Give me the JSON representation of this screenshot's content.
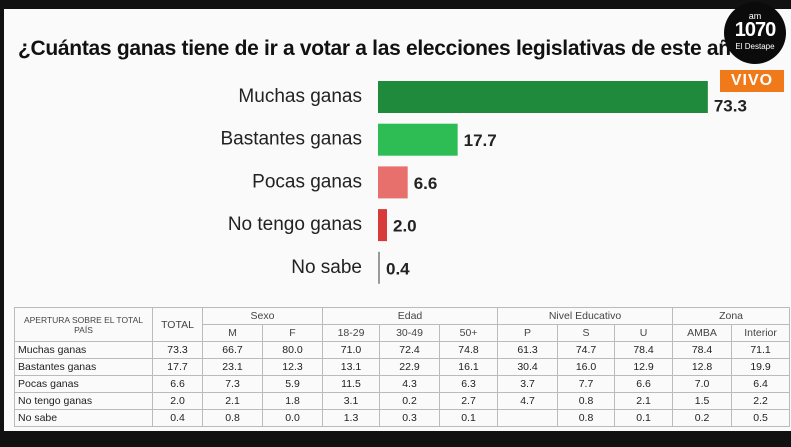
{
  "overlay": {
    "station": "am",
    "frequency": "1070",
    "name": "El Destape",
    "live": "VIVO"
  },
  "chart_data": {
    "type": "hbar",
    "title": "¿Cuántas ganas tiene de ir a votar a las elecciones legislativas de este año?",
    "categories": [
      "Muchas ganas",
      "Bastantes ganas",
      "Pocas ganas",
      "No tengo ganas",
      "No sabe"
    ],
    "values": [
      73.3,
      17.7,
      6.6,
      2.0,
      0.4
    ],
    "value_labels": [
      "73.3",
      "17.7",
      "6.6",
      "2.0",
      "0.4"
    ],
    "colors": [
      "#1f8a3b",
      "#2ebd55",
      "#e8706c",
      "#d8393a",
      "#9a9a9a"
    ]
  },
  "table": {
    "corner": "APERTURA SOBRE EL TOTAL PAÍS",
    "total": "TOTAL",
    "groups": [
      {
        "name": "Sexo",
        "columns": [
          "M",
          "F"
        ]
      },
      {
        "name": "Edad",
        "columns": [
          "18-29",
          "30-49",
          "50+"
        ]
      },
      {
        "name": "Nivel Educativo",
        "columns": [
          "P",
          "S",
          "U"
        ]
      },
      {
        "name": "Zona",
        "columns": [
          "AMBA",
          "Interior"
        ]
      }
    ],
    "rows": [
      {
        "label": "Muchas ganas",
        "values": [
          "73.3",
          "66.7",
          "80.0",
          "71.0",
          "72.4",
          "74.8",
          "61.3",
          "74.7",
          "78.4",
          "78.4",
          "71.1"
        ]
      },
      {
        "label": "Bastantes ganas",
        "values": [
          "17.7",
          "23.1",
          "12.3",
          "13.1",
          "22.9",
          "16.1",
          "30.4",
          "16.0",
          "12.9",
          "12.8",
          "19.9"
        ]
      },
      {
        "label": "Pocas ganas",
        "values": [
          "6.6",
          "7.3",
          "5.9",
          "11.5",
          "4.3",
          "6.3",
          "3.7",
          "7.7",
          "6.6",
          "7.0",
          "6.4"
        ]
      },
      {
        "label": "No tengo ganas",
        "values": [
          "2.0",
          "2.1",
          "1.8",
          "3.1",
          "0.2",
          "2.7",
          "4.7",
          "0.8",
          "2.1",
          "1.5",
          "2.2"
        ]
      },
      {
        "label": "No sabe",
        "values": [
          "0.4",
          "0.8",
          "0.0",
          "1.3",
          "0.3",
          "0.1",
          null,
          "0.8",
          "0.1",
          "0.2",
          "0.5"
        ]
      }
    ]
  }
}
